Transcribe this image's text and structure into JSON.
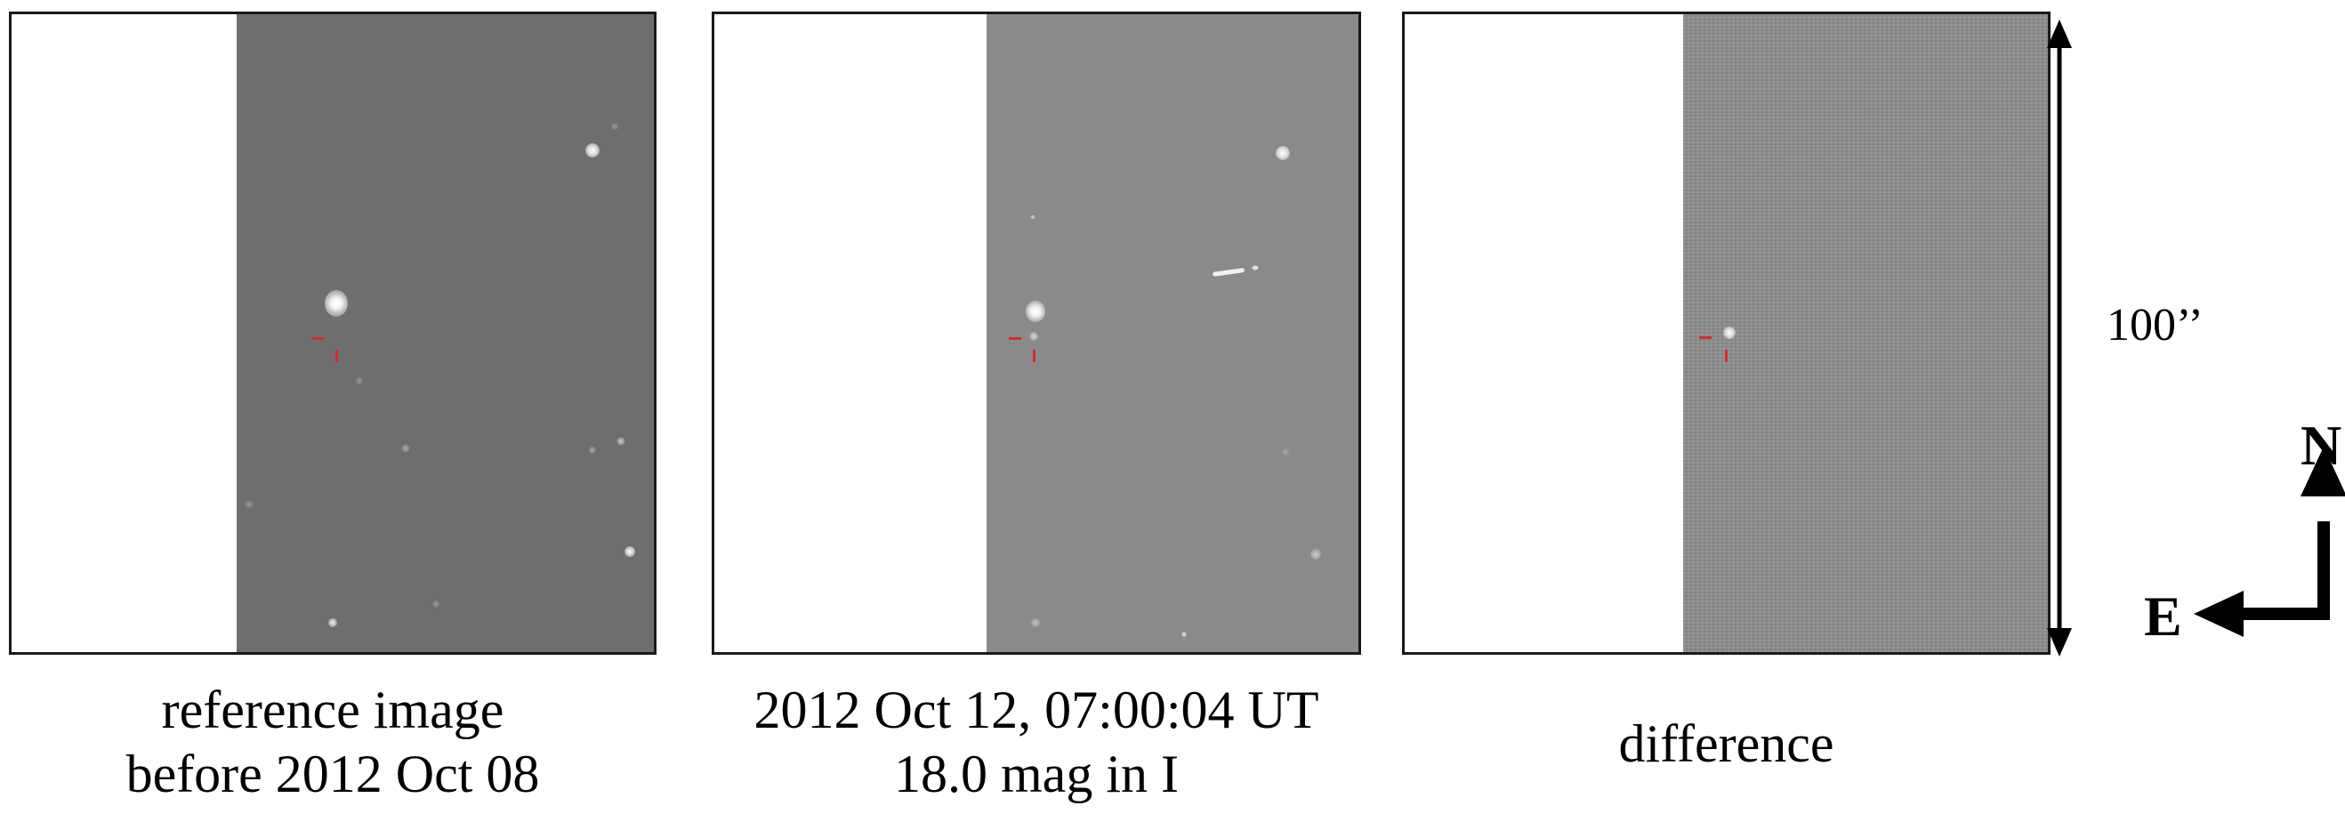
{
  "panels": [
    {
      "id": "reference",
      "caption_line1": "reference image",
      "caption_line2": "before 2012 Oct 08",
      "sky_color": "#6e6e6e"
    },
    {
      "id": "observation",
      "caption_line1": "2012 Oct 12, 07:00:04 UT",
      "caption_line2": "18.0 mag in I",
      "sky_color": "#8a8a8a"
    },
    {
      "id": "difference",
      "caption_line1": "difference",
      "sky_color": "#8d8d8d"
    }
  ],
  "scale_bar": {
    "label": "100’’"
  },
  "compass": {
    "north": "N",
    "east": "E"
  },
  "colors": {
    "marker": "#d42a2a",
    "frame": "#1a1a1a"
  }
}
